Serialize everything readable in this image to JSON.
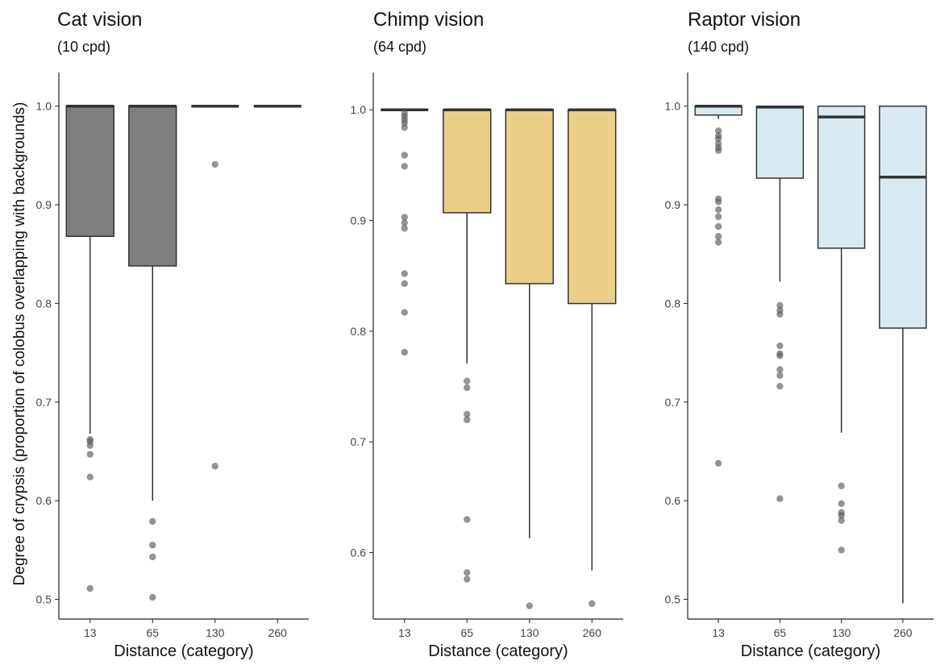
{
  "chart_data": [
    {
      "type": "boxplot",
      "title": "Cat vision",
      "subtitle": "(10 cpd)",
      "xlabel": "Distance (category)",
      "ylabel": "Degree of crypsis (proportion of colobus overlapping with backgrounds)",
      "categories": [
        "13",
        "65",
        "130",
        "260"
      ],
      "ylim": [
        0.48,
        1.03
      ],
      "yticks": [
        0.5,
        0.6,
        0.7,
        0.8,
        0.9,
        1.0
      ],
      "ytick_labels": [
        "0.5",
        "0.6",
        "0.7",
        "0.8",
        "0.9",
        "1.0"
      ],
      "fill": "#7f7f7f",
      "grid": false,
      "boxes": [
        {
          "category": "13",
          "q1": 0.868,
          "median": 1.0,
          "q3": 1.0,
          "whisker_low": 0.668,
          "whisker_high": 1.0,
          "outliers": [
            0.662,
            0.66,
            0.656,
            0.647,
            0.624,
            0.511
          ]
        },
        {
          "category": "65",
          "q1": 0.838,
          "median": 1.0,
          "q3": 1.0,
          "whisker_low": 0.6,
          "whisker_high": 1.0,
          "outliers": [
            0.579,
            0.555,
            0.543,
            0.502
          ]
        },
        {
          "category": "130",
          "q1": 1.0,
          "median": 1.0,
          "q3": 1.0,
          "whisker_low": 1.0,
          "whisker_high": 1.0,
          "outliers": [
            0.941,
            0.635
          ]
        },
        {
          "category": "260",
          "q1": 1.0,
          "median": 1.0,
          "q3": 1.0,
          "whisker_low": 1.0,
          "whisker_high": 1.0,
          "outliers": []
        }
      ]
    },
    {
      "type": "boxplot",
      "title": "Chimp vision",
      "subtitle": "(64 cpd)",
      "xlabel": "Distance (category)",
      "ylabel": "",
      "categories": [
        "13",
        "65",
        "130",
        "260"
      ],
      "ylim": [
        0.54,
        1.03
      ],
      "yticks": [
        0.6,
        0.7,
        0.8,
        0.9,
        1.0
      ],
      "ytick_labels": [
        "0.6",
        "0.7",
        "0.8",
        "0.9",
        "1.0"
      ],
      "fill": "#ebcf86",
      "grid": false,
      "boxes": [
        {
          "category": "13",
          "q1": 1.0,
          "median": 1.0,
          "q3": 1.0,
          "whisker_low": 1.0,
          "whisker_high": 1.0,
          "outliers": [
            0.997,
            0.994,
            0.991,
            0.988,
            0.984,
            0.959,
            0.949,
            0.903,
            0.898,
            0.893,
            0.852,
            0.843,
            0.817,
            0.781
          ]
        },
        {
          "category": "65",
          "q1": 0.907,
          "median": 1.0,
          "q3": 1.0,
          "whisker_low": 0.771,
          "whisker_high": 1.0,
          "outliers": [
            0.755,
            0.749,
            0.725,
            0.72,
            0.63,
            0.582,
            0.576
          ]
        },
        {
          "category": "130",
          "q1": 0.843,
          "median": 1.0,
          "q3": 1.0,
          "whisker_low": 0.613,
          "whisker_high": 1.0,
          "outliers": [
            0.552
          ]
        },
        {
          "category": "260",
          "q1": 0.825,
          "median": 1.0,
          "q3": 1.0,
          "whisker_low": 0.584,
          "whisker_high": 1.0,
          "outliers": [
            0.554
          ]
        }
      ]
    },
    {
      "type": "boxplot",
      "title": "Raptor vision",
      "subtitle": "(140 cpd)",
      "xlabel": "Distance (category)",
      "ylabel": "",
      "categories": [
        "13",
        "65",
        "130",
        "260"
      ],
      "ylim": [
        0.48,
        1.03
      ],
      "yticks": [
        0.5,
        0.6,
        0.7,
        0.8,
        0.9,
        1.0
      ],
      "ytick_labels": [
        "0.5",
        "0.6",
        "0.7",
        "0.8",
        "0.9",
        "1.0"
      ],
      "fill": "#d8e9f1",
      "grid": false,
      "boxes": [
        {
          "category": "13",
          "q1": 0.991,
          "median": 1.0,
          "q3": 1.0,
          "whisker_low": 0.987,
          "whisker_high": 1.0,
          "outliers": [
            0.975,
            0.97,
            0.967,
            0.962,
            0.958,
            0.955,
            0.906,
            0.903,
            0.895,
            0.888,
            0.878,
            0.868,
            0.862,
            0.638
          ]
        },
        {
          "category": "65",
          "q1": 0.927,
          "median": 0.999,
          "q3": 1.0,
          "whisker_low": 0.822,
          "whisker_high": 1.0,
          "outliers": [
            0.798,
            0.793,
            0.789,
            0.757,
            0.749,
            0.747,
            0.733,
            0.727,
            0.716,
            0.602
          ]
        },
        {
          "category": "130",
          "q1": 0.856,
          "median": 0.989,
          "q3": 1.0,
          "whisker_low": 0.669,
          "whisker_high": 1.0,
          "outliers": [
            0.615,
            0.597,
            0.588,
            0.585,
            0.58,
            0.55
          ]
        },
        {
          "category": "260",
          "q1": 0.775,
          "median": 0.928,
          "q3": 1.0,
          "whisker_low": 0.496,
          "whisker_high": 1.0,
          "outliers": []
        }
      ]
    }
  ]
}
